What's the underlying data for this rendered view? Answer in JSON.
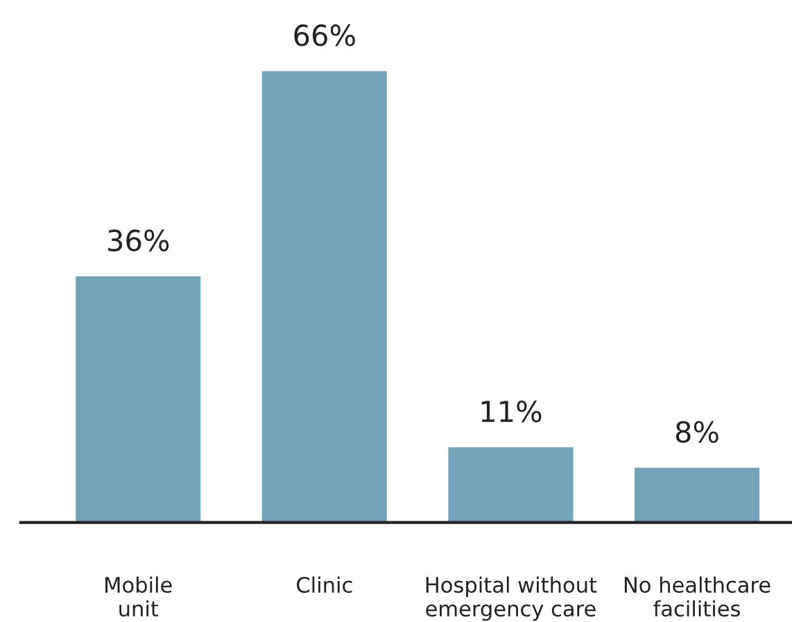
{
  "chart_data": {
    "type": "bar",
    "categories": [
      "Mobile\nunit",
      "Clinic",
      "Hospital without\nemergency care",
      "No healthcare\nfacilities"
    ],
    "values": [
      36,
      66,
      11,
      8
    ],
    "value_labels": [
      "36%",
      "66%",
      "11%",
      "8%"
    ],
    "color": "#72a3b8",
    "grid": false,
    "legend": false
  }
}
